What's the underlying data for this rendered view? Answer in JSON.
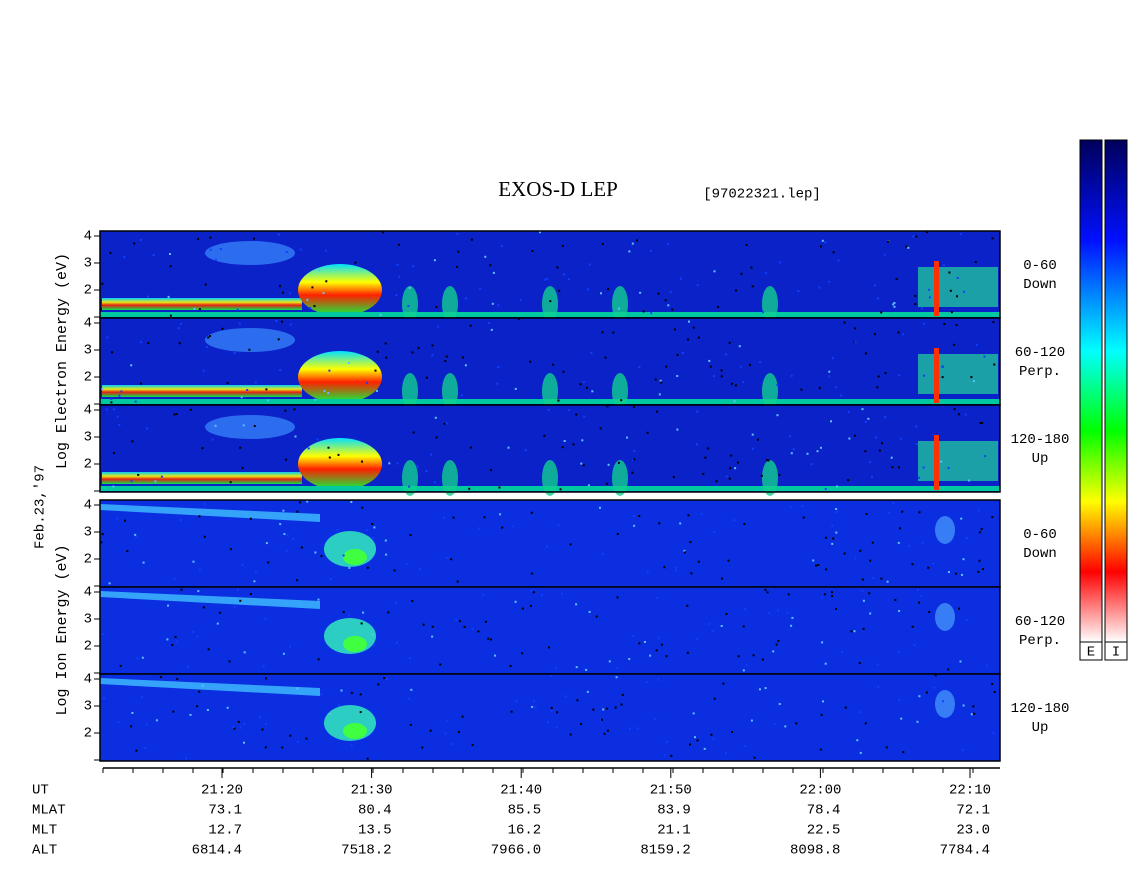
{
  "header": {
    "title": "EXOS-D LEP",
    "file": "[97022321.lep]",
    "date": "Feb.23,'97"
  },
  "groups": [
    {
      "label": "Log Electron Energy (eV)"
    },
    {
      "label": "Log Ion Energy (eV)"
    }
  ],
  "panels": [
    {
      "yticks": [
        "2",
        "3",
        "4"
      ],
      "pitch": "0-60",
      "direction": "Down"
    },
    {
      "yticks": [
        "2",
        "3",
        "4"
      ],
      "pitch": "60-120",
      "direction": "Perp."
    },
    {
      "yticks": [
        "2",
        "3",
        "4"
      ],
      "pitch": "120-180",
      "direction": "Up"
    },
    {
      "yticks": [
        "2",
        "3",
        "4"
      ],
      "pitch": "0-60",
      "direction": "Down"
    },
    {
      "yticks": [
        "2",
        "3",
        "4"
      ],
      "pitch": "60-120",
      "direction": "Perp."
    },
    {
      "yticks": [
        "2",
        "3",
        "4"
      ],
      "pitch": "120-180",
      "direction": "Up"
    }
  ],
  "colorbars": [
    "E",
    "I"
  ],
  "ephemeris": [
    {
      "label": "UT",
      "values": [
        "21:20",
        "21:30",
        "21:40",
        "21:50",
        "22:00",
        "22:10"
      ]
    },
    {
      "label": "MLAT",
      "values": [
        "73.1",
        "80.4",
        "85.5",
        "83.9",
        "78.4",
        "72.1"
      ]
    },
    {
      "label": "MLT",
      "values": [
        "12.7",
        "13.5",
        "16.2",
        "21.1",
        "22.5",
        "23.0"
      ]
    },
    {
      "label": "ALT",
      "values": [
        "6814.4",
        "7518.2",
        "7966.0",
        "8159.2",
        "8098.8",
        "7784.4"
      ]
    }
  ]
}
